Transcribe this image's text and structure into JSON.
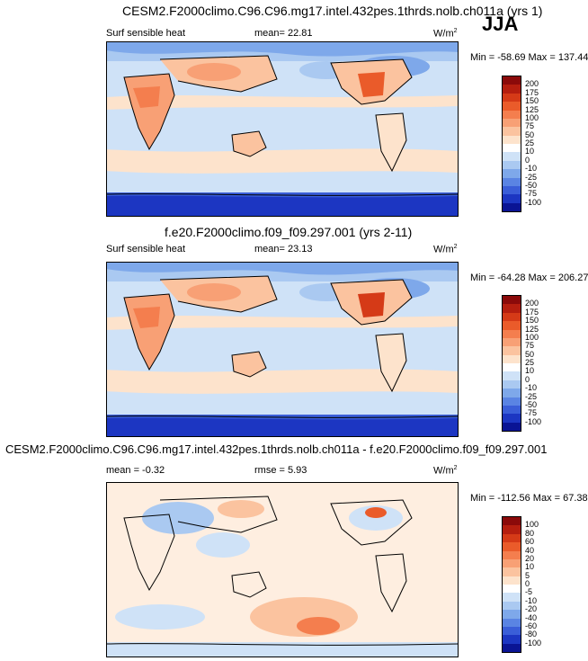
{
  "season": "JJA",
  "panels": [
    {
      "title": "CESM2.F2000climo.C96.C96.mg17.intel.432pes.1thrds.nolb.ch011a (yrs 1)",
      "left_label": "Surf sensible heat",
      "mid_label": "mean=  22.81",
      "units": "W/m",
      "units_sup": "2",
      "minmax": "Min = -58.69 Max = 137.44",
      "levels": [
        "200",
        "175",
        "150",
        "125",
        "100",
        "75",
        "50",
        "25",
        "10",
        "0",
        "-10",
        "-25",
        "-50",
        "-75",
        "-100"
      ],
      "colors": [
        "#8b0a0a",
        "#b51e0f",
        "#d53a17",
        "#ea5b2a",
        "#f47e4e",
        "#f8a075",
        "#fbc39f",
        "#fde3cc",
        "#ffffff",
        "#cfe2f7",
        "#aac9f1",
        "#7ea8ea",
        "#5a84e3",
        "#3a5ed8",
        "#1c36c2",
        "#0a1494"
      ]
    },
    {
      "title": "f.e20.F2000climo.f09_f09.297.001 (yrs 2-11)",
      "left_label": "Surf sensible heat",
      "mid_label": "mean=  23.13",
      "units": "W/m",
      "units_sup": "2",
      "minmax": "Min = -64.28 Max = 206.27",
      "levels": [
        "200",
        "175",
        "150",
        "125",
        "100",
        "75",
        "50",
        "25",
        "10",
        "0",
        "-10",
        "-25",
        "-50",
        "-75",
        "-100"
      ],
      "colors": [
        "#8b0a0a",
        "#b51e0f",
        "#d53a17",
        "#ea5b2a",
        "#f47e4e",
        "#f8a075",
        "#fbc39f",
        "#fde3cc",
        "#ffffff",
        "#cfe2f7",
        "#aac9f1",
        "#7ea8ea",
        "#5a84e3",
        "#3a5ed8",
        "#1c36c2",
        "#0a1494"
      ]
    },
    {
      "title": "CESM2.F2000climo.C96.C96.mg17.intel.432pes.1thrds.nolb.ch011a - f.e20.F2000climo.f09_f09.297.001",
      "left_label": "mean =  -0.32",
      "mid_label": "rmse =   5.93",
      "units": "W/m",
      "units_sup": "2",
      "minmax": "Min = -112.56 Max = 67.38",
      "levels": [
        "100",
        "80",
        "60",
        "40",
        "20",
        "10",
        "5",
        "0",
        "-5",
        "-10",
        "-20",
        "-40",
        "-60",
        "-80",
        "-100"
      ],
      "colors": [
        "#8b0a0a",
        "#b51e0f",
        "#d53a17",
        "#ea5b2a",
        "#f47e4e",
        "#f8a075",
        "#fbc39f",
        "#fde3cc",
        "#ffffff",
        "#cfe2f7",
        "#aac9f1",
        "#7ea8ea",
        "#5a84e3",
        "#3a5ed8",
        "#1c36c2",
        "#0a1494"
      ]
    }
  ],
  "chart_data": [
    {
      "type": "heatmap",
      "title": "CESM2.F2000climo.C96.C96.mg17.intel.432pes.1thrds.nolb.ch011a (yrs 1)",
      "variable": "Surf sensible heat",
      "units": "W/m2",
      "mean": 22.81,
      "min": -58.69,
      "max": 137.44,
      "contour_levels": [
        -100,
        -75,
        -50,
        -25,
        -10,
        0,
        10,
        25,
        50,
        75,
        100,
        125,
        150,
        175,
        200
      ]
    },
    {
      "type": "heatmap",
      "title": "f.e20.F2000climo.f09_f09.297.001 (yrs 2-11)",
      "variable": "Surf sensible heat",
      "units": "W/m2",
      "mean": 23.13,
      "min": -64.28,
      "max": 206.27,
      "contour_levels": [
        -100,
        -75,
        -50,
        -25,
        -10,
        0,
        10,
        25,
        50,
        75,
        100,
        125,
        150,
        175,
        200
      ]
    },
    {
      "type": "heatmap",
      "title": "CESM2.F2000climo.C96.C96.mg17.intel.432pes.1thrds.nolb.ch011a - f.e20.F2000climo.f09_f09.297.001",
      "units": "W/m2",
      "mean": -0.32,
      "rmse": 5.93,
      "min": -112.56,
      "max": 67.38,
      "contour_levels": [
        -100,
        -80,
        -60,
        -40,
        -20,
        -10,
        -5,
        0,
        5,
        10,
        20,
        40,
        60,
        80,
        100
      ]
    }
  ]
}
